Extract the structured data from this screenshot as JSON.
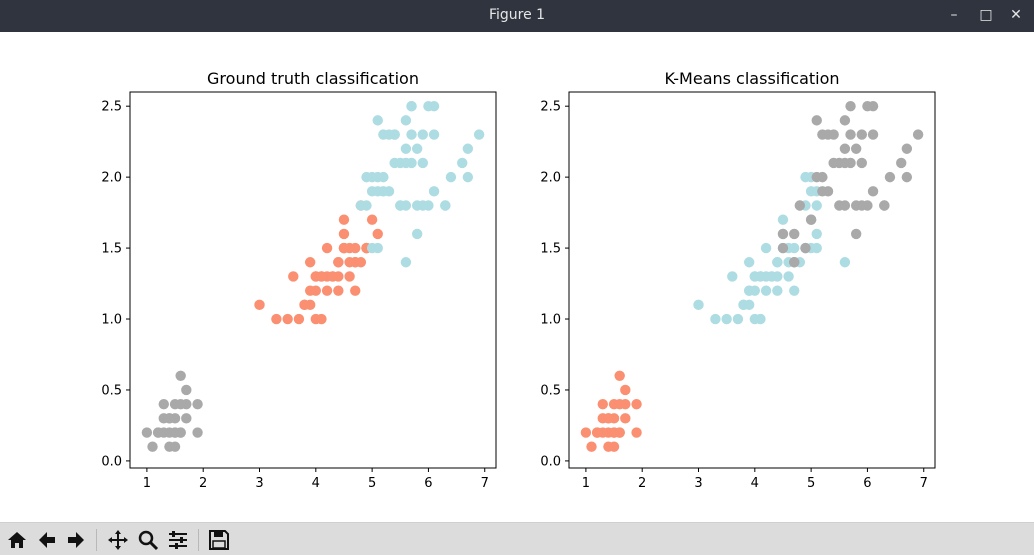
{
  "window": {
    "title": "Figure 1",
    "minimize_icon": "minimize-icon",
    "maximize_icon": "maximize-icon",
    "close_icon": "close-icon"
  },
  "toolbar": {
    "icons": [
      "home-icon",
      "back-icon",
      "forward-icon",
      "pan-icon",
      "zoom-icon",
      "configure-subplots-icon",
      "save-icon"
    ]
  },
  "colors": {
    "grey": "#a9a9a9",
    "salmon": "#fa8f71",
    "lightblue": "#aedce3"
  },
  "chart_data": [
    {
      "type": "scatter",
      "title": "Ground truth classification",
      "xlabel": "",
      "ylabel": "",
      "xlim": [
        0.7,
        7.2
      ],
      "ylim": [
        -0.05,
        2.6
      ],
      "xticks": [
        "1",
        "2",
        "3",
        "4",
        "5",
        "6",
        "7"
      ],
      "yticks": [
        "0.0",
        "0.5",
        "1.0",
        "1.5",
        "2.0",
        "2.5"
      ],
      "series": [
        {
          "color": "grey",
          "points": [
            [
              1.4,
              0.2
            ],
            [
              1.3,
              0.2
            ],
            [
              1.5,
              0.2
            ],
            [
              1.7,
              0.4
            ],
            [
              1.4,
              0.3
            ],
            [
              1.5,
              0.1
            ],
            [
              1.6,
              0.2
            ],
            [
              1.1,
              0.1
            ],
            [
              1.2,
              0.2
            ],
            [
              1.5,
              0.4
            ],
            [
              1.3,
              0.4
            ],
            [
              1.7,
              0.3
            ],
            [
              1.5,
              0.3
            ],
            [
              1.0,
              0.2
            ],
            [
              1.7,
              0.5
            ],
            [
              1.9,
              0.2
            ],
            [
              1.6,
              0.4
            ],
            [
              1.6,
              0.6
            ],
            [
              1.4,
              0.1
            ],
            [
              1.2,
              0.2
            ],
            [
              1.3,
              0.3
            ],
            [
              1.6,
              0.2
            ],
            [
              1.9,
              0.4
            ],
            [
              1.4,
              0.3
            ],
            [
              1.5,
              0.2
            ]
          ]
        },
        {
          "color": "salmon",
          "points": [
            [
              4.7,
              1.4
            ],
            [
              4.5,
              1.5
            ],
            [
              4.9,
              1.5
            ],
            [
              4.0,
              1.3
            ],
            [
              4.6,
              1.5
            ],
            [
              3.3,
              1.0
            ],
            [
              4.6,
              1.3
            ],
            [
              3.9,
              1.4
            ],
            [
              3.5,
              1.0
            ],
            [
              4.2,
              1.5
            ],
            [
              4.0,
              1.0
            ],
            [
              4.7,
              1.4
            ],
            [
              3.6,
              1.3
            ],
            [
              4.4,
              1.4
            ],
            [
              4.1,
              1.0
            ],
            [
              4.5,
              1.5
            ],
            [
              3.9,
              1.1
            ],
            [
              4.8,
              1.8
            ],
            [
              4.9,
              1.5
            ],
            [
              4.7,
              1.2
            ],
            [
              4.3,
              1.3
            ],
            [
              4.4,
              1.4
            ],
            [
              5.0,
              1.7
            ],
            [
              3.8,
              1.1
            ],
            [
              3.7,
              1.0
            ],
            [
              5.1,
              1.6
            ],
            [
              4.5,
              1.6
            ],
            [
              4.7,
              1.5
            ],
            [
              4.1,
              1.3
            ],
            [
              4.0,
              1.3
            ],
            [
              4.4,
              1.2
            ],
            [
              4.6,
              1.4
            ],
            [
              3.0,
              1.1
            ],
            [
              4.2,
              1.3
            ],
            [
              4.2,
              1.2
            ],
            [
              4.3,
              1.3
            ],
            [
              3.8,
              1.1
            ],
            [
              4.1,
              1.3
            ],
            [
              4.5,
              1.5
            ],
            [
              4.0,
              1.2
            ],
            [
              4.9,
              1.5
            ],
            [
              4.4,
              1.3
            ],
            [
              3.9,
              1.2
            ],
            [
              4.8,
              1.4
            ],
            [
              4.5,
              1.7
            ]
          ]
        },
        {
          "color": "lightblue",
          "points": [
            [
              6.0,
              2.5
            ],
            [
              5.1,
              1.9
            ],
            [
              5.9,
              2.1
            ],
            [
              5.6,
              1.8
            ],
            [
              5.8,
              2.2
            ],
            [
              6.6,
              2.1
            ],
            [
              6.3,
              1.8
            ],
            [
              5.8,
              1.8
            ],
            [
              6.1,
              2.5
            ],
            [
              5.1,
              2.0
            ],
            [
              5.3,
              1.9
            ],
            [
              5.5,
              2.1
            ],
            [
              5.0,
              2.0
            ],
            [
              5.1,
              2.4
            ],
            [
              5.3,
              2.3
            ],
            [
              5.5,
              1.8
            ],
            [
              6.7,
              2.2
            ],
            [
              6.9,
              2.3
            ],
            [
              5.0,
              1.5
            ],
            [
              5.7,
              2.3
            ],
            [
              4.9,
              2.0
            ],
            [
              6.7,
              2.0
            ],
            [
              4.9,
              1.8
            ],
            [
              5.7,
              2.1
            ],
            [
              6.0,
              1.8
            ],
            [
              4.8,
              1.8
            ],
            [
              5.6,
              2.1
            ],
            [
              5.8,
              1.6
            ],
            [
              6.1,
              1.9
            ],
            [
              6.4,
              2.0
            ],
            [
              5.6,
              2.2
            ],
            [
              5.1,
              1.5
            ],
            [
              5.6,
              1.4
            ],
            [
              6.1,
              2.3
            ],
            [
              5.6,
              2.4
            ],
            [
              5.5,
              1.8
            ],
            [
              5.4,
              2.1
            ],
            [
              5.2,
              2.3
            ],
            [
              5.4,
              2.3
            ],
            [
              5.2,
              2.0
            ],
            [
              5.7,
              2.5
            ],
            [
              5.0,
              1.9
            ],
            [
              5.2,
              1.9
            ],
            [
              5.4,
              2.3
            ],
            [
              6.3,
              1.8
            ],
            [
              5.9,
              2.3
            ],
            [
              5.9,
              1.8
            ],
            [
              5.7,
              2.5
            ]
          ]
        }
      ]
    },
    {
      "type": "scatter",
      "title": "K-Means classification",
      "xlabel": "",
      "ylabel": "",
      "xlim": [
        0.7,
        7.2
      ],
      "ylim": [
        -0.05,
        2.6
      ],
      "xticks": [
        "1",
        "2",
        "3",
        "4",
        "5",
        "6",
        "7"
      ],
      "yticks": [
        "0.0",
        "0.5",
        "1.0",
        "1.5",
        "2.0",
        "2.5"
      ],
      "series": [
        {
          "color": "salmon",
          "points": [
            [
              1.4,
              0.2
            ],
            [
              1.3,
              0.2
            ],
            [
              1.5,
              0.2
            ],
            [
              1.7,
              0.4
            ],
            [
              1.4,
              0.3
            ],
            [
              1.5,
              0.1
            ],
            [
              1.6,
              0.2
            ],
            [
              1.1,
              0.1
            ],
            [
              1.2,
              0.2
            ],
            [
              1.5,
              0.4
            ],
            [
              1.3,
              0.4
            ],
            [
              1.7,
              0.3
            ],
            [
              1.5,
              0.3
            ],
            [
              1.0,
              0.2
            ],
            [
              1.7,
              0.5
            ],
            [
              1.9,
              0.2
            ],
            [
              1.6,
              0.4
            ],
            [
              1.6,
              0.6
            ],
            [
              1.4,
              0.1
            ],
            [
              1.2,
              0.2
            ],
            [
              1.3,
              0.3
            ],
            [
              1.6,
              0.2
            ],
            [
              1.9,
              0.4
            ],
            [
              1.4,
              0.3
            ],
            [
              1.5,
              0.2
            ]
          ]
        },
        {
          "color": "lightblue",
          "points": [
            [
              4.5,
              1.5
            ],
            [
              4.0,
              1.3
            ],
            [
              4.6,
              1.5
            ],
            [
              3.3,
              1.0
            ],
            [
              4.6,
              1.3
            ],
            [
              3.9,
              1.4
            ],
            [
              3.5,
              1.0
            ],
            [
              4.2,
              1.5
            ],
            [
              4.0,
              1.0
            ],
            [
              3.6,
              1.3
            ],
            [
              4.4,
              1.4
            ],
            [
              4.1,
              1.0
            ],
            [
              3.9,
              1.1
            ],
            [
              4.9,
              1.5
            ],
            [
              4.7,
              1.2
            ],
            [
              4.3,
              1.3
            ],
            [
              4.4,
              1.4
            ],
            [
              3.8,
              1.1
            ],
            [
              3.7,
              1.0
            ],
            [
              5.1,
              1.6
            ],
            [
              4.5,
              1.6
            ],
            [
              4.7,
              1.5
            ],
            [
              4.1,
              1.3
            ],
            [
              4.0,
              1.3
            ],
            [
              4.4,
              1.2
            ],
            [
              4.6,
              1.4
            ],
            [
              3.0,
              1.1
            ],
            [
              4.2,
              1.3
            ],
            [
              4.2,
              1.2
            ],
            [
              4.3,
              1.3
            ],
            [
              3.8,
              1.1
            ],
            [
              4.1,
              1.3
            ],
            [
              4.0,
              1.2
            ],
            [
              4.9,
              1.5
            ],
            [
              4.4,
              1.3
            ],
            [
              3.9,
              1.2
            ],
            [
              4.8,
              1.4
            ],
            [
              4.5,
              1.7
            ],
            [
              5.0,
              1.5
            ],
            [
              4.9,
              2.0
            ],
            [
              4.8,
              1.8
            ],
            [
              5.1,
              1.5
            ],
            [
              5.6,
              1.4
            ],
            [
              5.0,
              2.0
            ],
            [
              5.1,
              1.9
            ],
            [
              5.0,
              1.9
            ],
            [
              4.9,
              1.8
            ],
            [
              5.1,
              1.8
            ],
            [
              3.9,
              1.2
            ]
          ]
        },
        {
          "color": "grey",
          "points": [
            [
              4.7,
              1.4
            ],
            [
              4.9,
              1.5
            ],
            [
              4.8,
              1.8
            ],
            [
              4.7,
              1.4
            ],
            [
              5.0,
              1.7
            ],
            [
              4.5,
              1.5
            ],
            [
              4.7,
              1.6
            ],
            [
              6.0,
              2.5
            ],
            [
              5.9,
              2.1
            ],
            [
              5.6,
              1.8
            ],
            [
              5.8,
              2.2
            ],
            [
              6.6,
              2.1
            ],
            [
              6.3,
              1.8
            ],
            [
              5.8,
              1.8
            ],
            [
              6.1,
              2.5
            ],
            [
              5.1,
              2.0
            ],
            [
              5.3,
              1.9
            ],
            [
              5.5,
              2.1
            ],
            [
              5.1,
              2.4
            ],
            [
              5.3,
              2.3
            ],
            [
              5.5,
              1.8
            ],
            [
              6.7,
              2.2
            ],
            [
              6.9,
              2.3
            ],
            [
              5.7,
              2.3
            ],
            [
              6.7,
              2.0
            ],
            [
              5.7,
              2.1
            ],
            [
              6.0,
              1.8
            ],
            [
              5.6,
              2.1
            ],
            [
              5.8,
              1.6
            ],
            [
              6.1,
              1.9
            ],
            [
              6.4,
              2.0
            ],
            [
              5.6,
              2.2
            ],
            [
              6.1,
              2.3
            ],
            [
              5.6,
              2.4
            ],
            [
              5.4,
              2.1
            ],
            [
              5.2,
              2.3
            ],
            [
              5.4,
              2.3
            ],
            [
              5.2,
              2.0
            ],
            [
              5.7,
              2.5
            ],
            [
              5.2,
              1.9
            ],
            [
              5.9,
              2.3
            ],
            [
              5.9,
              1.8
            ],
            [
              5.0,
              1.7
            ],
            [
              4.5,
              1.6
            ],
            [
              6.3,
              1.8
            ]
          ]
        }
      ]
    }
  ]
}
